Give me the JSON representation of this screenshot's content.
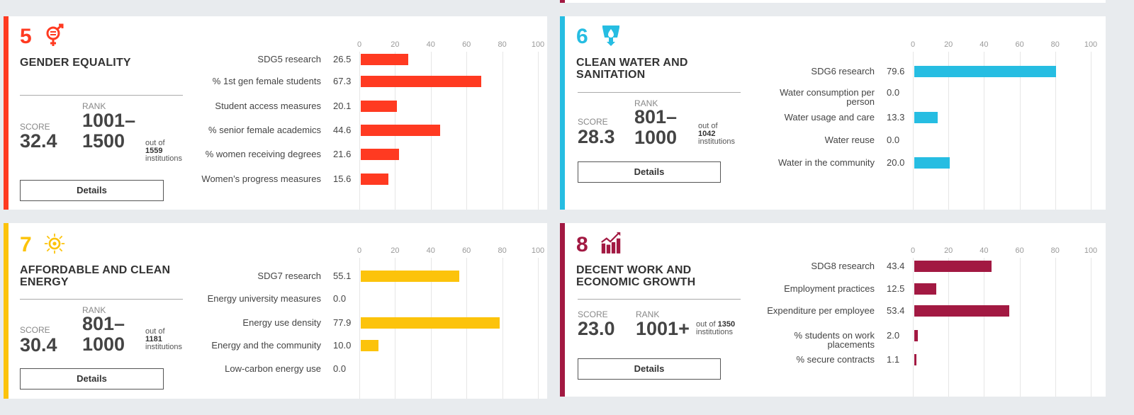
{
  "cards": [
    {
      "number": "5",
      "icon": "gender-equality-icon",
      "title": "GENDER EQUALITY",
      "color": "#ff3a21",
      "score_label": "SCORE",
      "score": "32.4",
      "rank_label": "RANK",
      "rank_line1": "1001–",
      "rank_line2": "1500",
      "outof": "out of",
      "total": "1559",
      "institutions": "institutions",
      "details": "Details",
      "chart_data": {
        "type": "bar",
        "orientation": "horizontal",
        "xlim": [
          0,
          100
        ],
        "ticks": [
          "0",
          "20",
          "40",
          "60",
          "80",
          "100"
        ],
        "categories": [
          "SDG5 research",
          "% 1st gen female students",
          "Student access measures",
          "% senior female academics",
          "% women receiving degrees",
          "Women’s progress measures"
        ],
        "values": [
          26.5,
          67.3,
          20.1,
          44.6,
          21.6,
          15.6
        ],
        "labels": [
          "26.5",
          "67.3",
          "20.1",
          "44.6",
          "21.6",
          "15.6"
        ]
      }
    },
    {
      "number": "6",
      "icon": "water-drop-icon",
      "title": "CLEAN WATER AND SANITATION",
      "color": "#26bde2",
      "score_label": "SCORE",
      "score": "28.3",
      "rank_label": "RANK",
      "rank_line1": "801–",
      "rank_line2": "1000",
      "outof": "out of",
      "total": "1042",
      "institutions": "institutions",
      "details": "Details",
      "chart_data": {
        "type": "bar",
        "orientation": "horizontal",
        "xlim": [
          0,
          100
        ],
        "ticks": [
          "0",
          "20",
          "40",
          "60",
          "80",
          "100"
        ],
        "categories": [
          "SDG6 research",
          "Water consumption per person",
          "Water usage and care",
          "Water reuse",
          "Water in the community"
        ],
        "values": [
          79.6,
          0.0,
          13.3,
          0.0,
          20.0
        ],
        "labels": [
          "79.6",
          "0.0",
          "13.3",
          "0.0",
          "20.0"
        ]
      }
    },
    {
      "number": "7",
      "icon": "sun-energy-icon",
      "title": "AFFORDABLE AND CLEAN ENERGY",
      "color": "#fcc30b",
      "score_label": "SCORE",
      "score": "30.4",
      "rank_label": "RANK",
      "rank_line1": "801–",
      "rank_line2": "1000",
      "outof": "out of",
      "total": "1181",
      "institutions": "institutions",
      "details": "Details",
      "chart_data": {
        "type": "bar",
        "orientation": "horizontal",
        "xlim": [
          0,
          100
        ],
        "ticks": [
          "0",
          "20",
          "40",
          "60",
          "80",
          "100"
        ],
        "categories": [
          "SDG7 research",
          "Energy university measures",
          "Energy use density",
          "Energy and the community",
          "Low-carbon energy use"
        ],
        "values": [
          55.1,
          0.0,
          77.9,
          10.0,
          0.0
        ],
        "labels": [
          "55.1",
          "0.0",
          "77.9",
          "10.0",
          "0.0"
        ]
      }
    },
    {
      "number": "8",
      "icon": "growth-chart-icon",
      "title": "DECENT WORK AND ECONOMIC GROWTH",
      "color": "#a21942",
      "score_label": "SCORE",
      "score": "23.0",
      "rank_label": "RANK",
      "rank_line1": "1001+",
      "rank_line2": "",
      "outof": "out of",
      "total": "1350",
      "institutions": "institutions",
      "details": "Details",
      "chart_data": {
        "type": "bar",
        "orientation": "horizontal",
        "xlim": [
          0,
          100
        ],
        "ticks": [
          "0",
          "20",
          "40",
          "60",
          "80",
          "100"
        ],
        "categories": [
          "SDG8 research",
          "Employment practices",
          "Expenditure per employee",
          "% students on work placements",
          "% secure contracts"
        ],
        "values": [
          43.4,
          12.5,
          53.4,
          2.0,
          1.1
        ],
        "labels": [
          "43.4",
          "12.5",
          "53.4",
          "2.0",
          "1.1"
        ]
      }
    }
  ]
}
